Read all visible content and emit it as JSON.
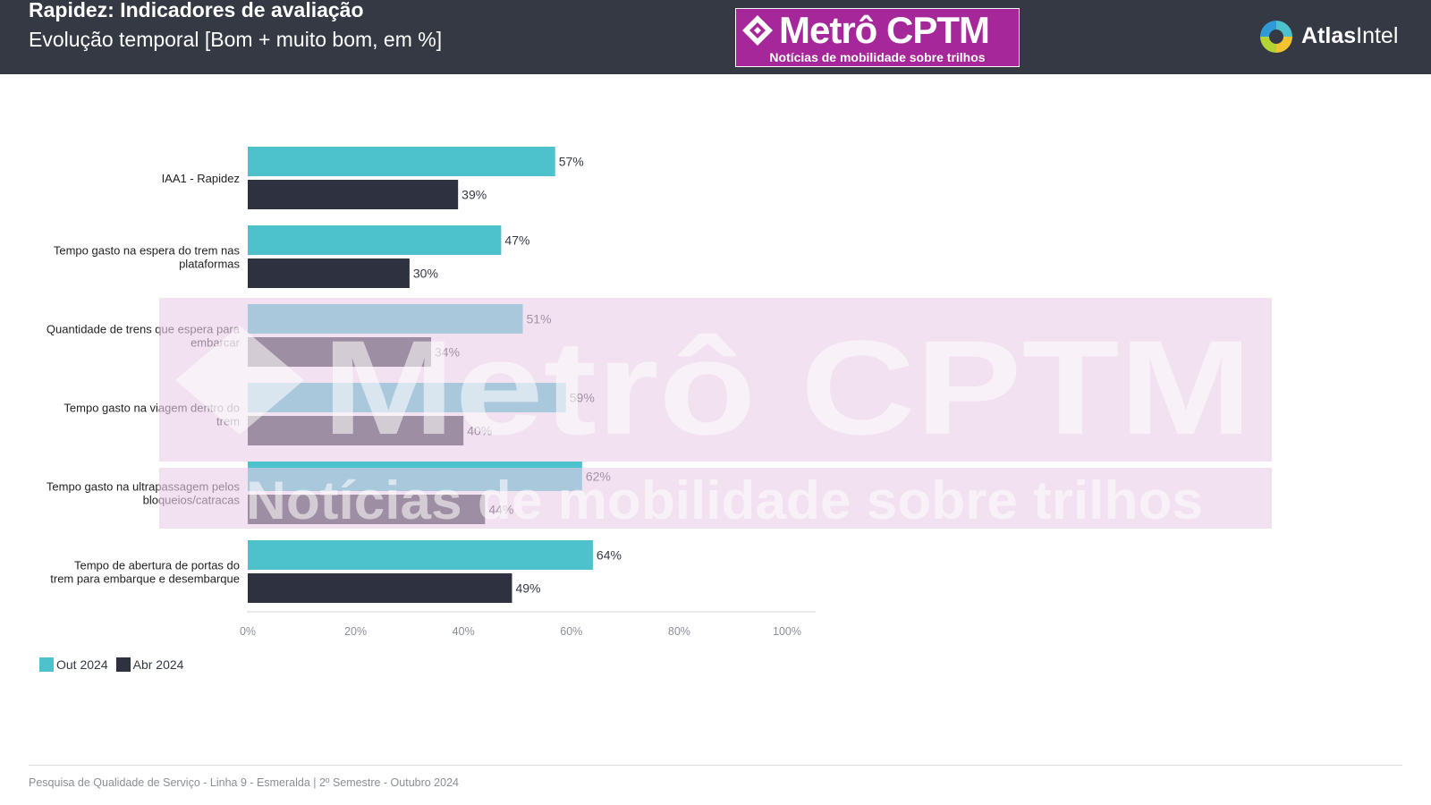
{
  "header": {
    "title": "Rapidez: Indicadores de avaliação",
    "subtitle": "Evolução temporal [Bom + muito bom, em %]"
  },
  "brand": {
    "name": "Metrô CPTM",
    "tagline": "Notícias de mobilidade sobre trilhos"
  },
  "atlas": {
    "name_bold": "Atlas",
    "name_light": "Intel"
  },
  "watermark": {
    "name": "Metrô CPTM",
    "tagline": "Notícias de mobilidade sobre trilhos"
  },
  "footer": {
    "text": "Pesquisa de Qualidade de Serviço - Linha 9 - Esmeralda | 2º Semestre - Outubro 2024"
  },
  "colors": {
    "header_bg": "#343944",
    "brand_magenta": "#a6279a",
    "series_out_2024": "#4dc1cc",
    "series_abr_2024": "#2e3140",
    "watermark_tint": "#e9cde6"
  },
  "icons": [
    "metro-cptm-diamond-logo-icon",
    "atlasintel-logo-icon"
  ],
  "chart_data": {
    "type": "bar",
    "orientation": "horizontal",
    "categories": [
      "IAA1 - Rapidez",
      "Tempo gasto na espera do trem nas plataformas",
      "Quantidade de trens que espera para embarcar",
      "Tempo gasto na viagem dentro do trem",
      "Tempo gasto na ultrapassagem pelos bloqueios/catracas",
      "Tempo de abertura de portas do trem para embarque e desembarque"
    ],
    "category_label_lines": [
      [
        "IAA1 - Rapidez"
      ],
      [
        "Tempo gasto na espera do trem nas",
        "plataformas"
      ],
      [
        "Quantidade de trens que espera para",
        "embarcar"
      ],
      [
        "Tempo gasto na viagem dentro do",
        "trem"
      ],
      [
        "Tempo gasto na ultrapassagem pelos",
        "bloqueios/catracas"
      ],
      [
        "Tempo de abertura de portas do",
        "trem para embarque e desembarque"
      ]
    ],
    "series": [
      {
        "name": "Out 2024",
        "values": [
          57,
          47,
          51,
          59,
          62,
          64
        ],
        "color": "#4dc1cc"
      },
      {
        "name": "Abr 2024",
        "values": [
          39,
          30,
          34,
          40,
          44,
          49
        ],
        "color": "#2e3140"
      }
    ],
    "value_suffix": "%",
    "xlim": [
      0,
      100
    ],
    "xticks": [
      0,
      20,
      40,
      60,
      80,
      100
    ],
    "xtick_labels": [
      "0%",
      "20%",
      "40%",
      "60%",
      "80%",
      "100%"
    ],
    "grid": false,
    "legend_position": "bottom-left"
  }
}
